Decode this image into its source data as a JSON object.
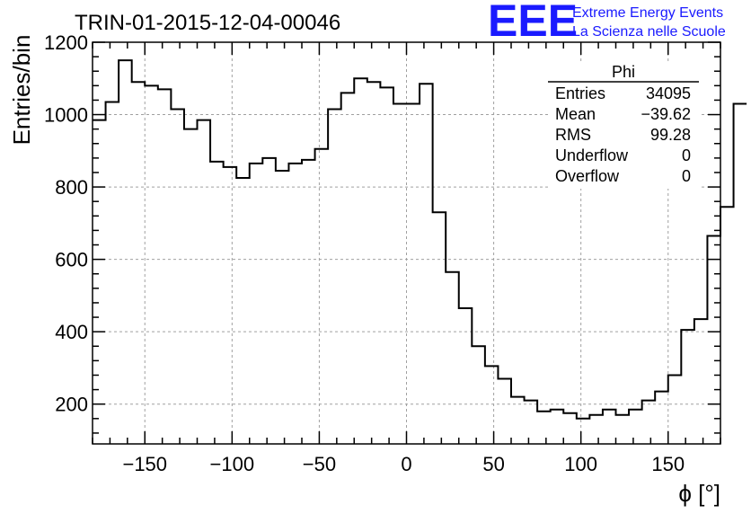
{
  "chart_data": {
    "type": "histogram",
    "title": "TRIN-01-2015-12-04-00046",
    "xlabel": "ϕ [°]",
    "ylabel": "Entries/bin",
    "xlim": [
      -180,
      180
    ],
    "ylim": [
      90,
      1200
    ],
    "grid": true,
    "x_ticks": [
      -150,
      -100,
      -50,
      0,
      50,
      100,
      150
    ],
    "y_ticks": [
      200,
      400,
      600,
      800,
      1000,
      1200
    ],
    "bin_width": 7.5,
    "bin_low_edge": -180,
    "values": [
      985,
      1035,
      1150,
      1090,
      1080,
      1070,
      1015,
      960,
      985,
      870,
      855,
      825,
      865,
      880,
      845,
      865,
      875,
      905,
      1015,
      1060,
      1100,
      1090,
      1075,
      1030,
      1030,
      1085,
      730,
      565,
      465,
      360,
      305,
      270,
      220,
      210,
      180,
      185,
      175,
      160,
      170,
      185,
      170,
      185,
      210,
      235,
      280,
      405,
      435,
      665,
      745,
      1030
    ],
    "stats_box": {
      "name": "Phi",
      "rows": [
        {
          "label": "Entries",
          "value": "34095"
        },
        {
          "label": "Mean",
          "value": "−39.62"
        },
        {
          "label": "RMS",
          "value": "99.28"
        },
        {
          "label": "Underflow",
          "value": "0"
        },
        {
          "label": "Overflow",
          "value": "0"
        }
      ]
    }
  },
  "logo": {
    "mark": "EEE",
    "line1": "Extreme Energy Events",
    "line2": "La Scienza nelle Scuole"
  },
  "colors": {
    "line": "#000000",
    "grid": "#a0a0a0",
    "logo": "#1a1aff"
  }
}
